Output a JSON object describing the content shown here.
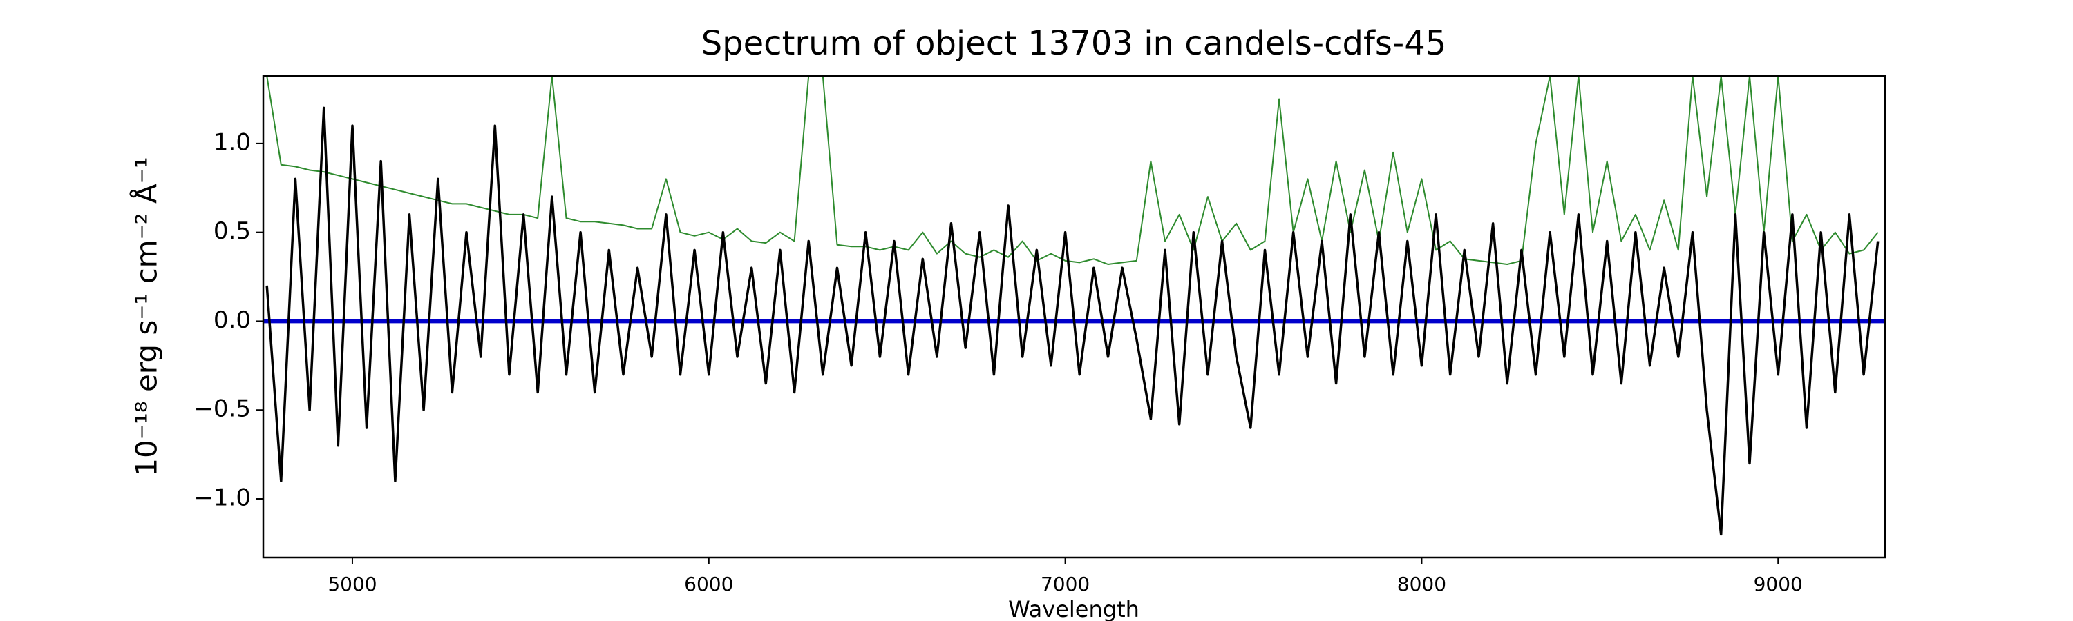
{
  "chart_data": {
    "type": "line",
    "title": "Spectrum of object 13703 in candels-cdfs-45",
    "x_label": "Wavelength",
    "y_label": "10⁻¹⁸ erg s⁻¹ cm⁻² Å⁻¹",
    "xlim": [
      4750,
      9300
    ],
    "ylim": [
      -1.33,
      1.38
    ],
    "xticks": [
      5000,
      6000,
      7000,
      8000,
      9000
    ],
    "yticks": [
      {
        "value": -1.0,
        "label": "−1.0"
      },
      {
        "value": -0.5,
        "label": "−0.5"
      },
      {
        "value": 0.0,
        "label": "0.0"
      },
      {
        "value": 0.5,
        "label": "0.5"
      },
      {
        "value": 1.0,
        "label": "1.0"
      }
    ],
    "x": [
      4760,
      4800,
      4840,
      4880,
      4920,
      4960,
      5000,
      5040,
      5080,
      5120,
      5160,
      5200,
      5240,
      5280,
      5320,
      5360,
      5400,
      5440,
      5480,
      5520,
      5560,
      5600,
      5640,
      5680,
      5720,
      5760,
      5800,
      5840,
      5880,
      5920,
      5960,
      6000,
      6040,
      6080,
      6120,
      6160,
      6200,
      6240,
      6280,
      6320,
      6360,
      6400,
      6440,
      6480,
      6520,
      6560,
      6600,
      6640,
      6680,
      6720,
      6760,
      6800,
      6840,
      6880,
      6920,
      6960,
      7000,
      7040,
      7080,
      7120,
      7160,
      7200,
      7240,
      7280,
      7320,
      7360,
      7400,
      7440,
      7480,
      7520,
      7560,
      7600,
      7640,
      7680,
      7720,
      7760,
      7800,
      7840,
      7880,
      7920,
      7960,
      8000,
      8040,
      8080,
      8120,
      8160,
      8200,
      8240,
      8280,
      8320,
      8360,
      8400,
      8440,
      8480,
      8520,
      8560,
      8600,
      8640,
      8680,
      8720,
      8760,
      8800,
      8840,
      8880,
      8920,
      8960,
      9000,
      9040,
      9080,
      9120,
      9160,
      9200,
      9240,
      9280
    ],
    "series": [
      {
        "color": "#2e8b2e",
        "width": 2,
        "values": [
          1.38,
          0.88,
          0.87,
          0.85,
          0.84,
          0.82,
          0.8,
          0.78,
          0.76,
          0.74,
          0.72,
          0.7,
          0.68,
          0.66,
          0.66,
          0.64,
          0.62,
          0.6,
          0.6,
          0.58,
          1.38,
          0.58,
          0.56,
          0.56,
          0.55,
          0.54,
          0.52,
          0.52,
          0.8,
          0.5,
          0.48,
          0.5,
          0.46,
          0.52,
          0.45,
          0.44,
          0.5,
          0.45,
          1.38,
          1.38,
          0.43,
          0.42,
          0.42,
          0.4,
          0.42,
          0.4,
          0.5,
          0.38,
          0.45,
          0.38,
          0.36,
          0.4,
          0.36,
          0.45,
          0.34,
          0.38,
          0.34,
          0.33,
          0.35,
          0.32,
          0.33,
          0.34,
          0.9,
          0.45,
          0.6,
          0.4,
          0.7,
          0.45,
          0.55,
          0.4,
          0.45,
          1.25,
          0.5,
          0.8,
          0.45,
          0.9,
          0.5,
          0.85,
          0.45,
          0.95,
          0.5,
          0.8,
          0.4,
          0.45,
          0.35,
          0.34,
          0.33,
          0.32,
          0.34,
          1.0,
          1.38,
          0.6,
          1.38,
          0.5,
          0.9,
          0.45,
          0.6,
          0.4,
          0.68,
          0.4,
          1.38,
          0.7,
          1.38,
          0.6,
          1.38,
          0.5,
          1.38,
          0.45,
          0.6,
          0.4,
          0.5,
          0.38,
          0.4,
          0.5
        ]
      },
      {
        "color": "#0000cc",
        "width": 6,
        "x": [
          4750,
          9300
        ],
        "values": [
          0,
          0
        ]
      },
      {
        "color": "#000000",
        "width": 3.5,
        "values": [
          0.2,
          -0.9,
          0.8,
          -0.5,
          1.2,
          -0.7,
          1.1,
          -0.6,
          0.9,
          -0.9,
          0.6,
          -0.5,
          0.8,
          -0.4,
          0.5,
          -0.2,
          1.1,
          -0.3,
          0.6,
          -0.4,
          0.7,
          -0.3,
          0.5,
          -0.4,
          0.4,
          -0.3,
          0.3,
          -0.2,
          0.6,
          -0.3,
          0.4,
          -0.3,
          0.5,
          -0.2,
          0.3,
          -0.35,
          0.4,
          -0.4,
          0.45,
          -0.3,
          0.3,
          -0.25,
          0.5,
          -0.2,
          0.45,
          -0.3,
          0.35,
          -0.2,
          0.55,
          -0.15,
          0.5,
          -0.3,
          0.65,
          -0.2,
          0.4,
          -0.25,
          0.5,
          -0.3,
          0.3,
          -0.2,
          0.3,
          -0.1,
          -0.55,
          0.4,
          -0.58,
          0.5,
          -0.3,
          0.45,
          -0.2,
          -0.6,
          0.4,
          -0.3,
          0.5,
          -0.2,
          0.45,
          -0.35,
          0.6,
          -0.2,
          0.5,
          -0.3,
          0.45,
          -0.25,
          0.6,
          -0.3,
          0.4,
          -0.2,
          0.55,
          -0.35,
          0.4,
          -0.3,
          0.5,
          -0.2,
          0.6,
          -0.3,
          0.45,
          -0.35,
          0.5,
          -0.25,
          0.3,
          -0.2,
          0.5,
          -0.5,
          -1.2,
          0.6,
          -0.8,
          0.5,
          -0.3,
          0.6,
          -0.6,
          0.5,
          -0.4,
          0.6,
          -0.3,
          0.45
        ]
      }
    ]
  }
}
